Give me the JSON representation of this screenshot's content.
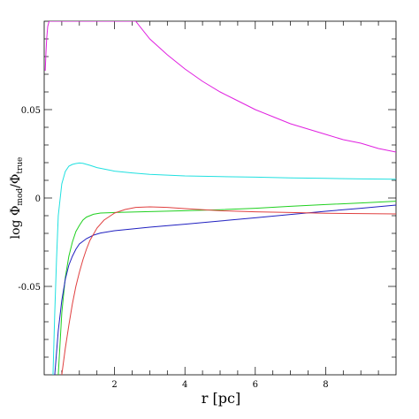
{
  "chart_data": {
    "type": "line",
    "xlabel": "r [pc]",
    "ylabel": {
      "prefix": "log Φ",
      "sub1": "mod",
      "slash": "/Φ",
      "sub2": "true"
    },
    "xlim": [
      0,
      10
    ],
    "ylim": [
      -0.1,
      0.1
    ],
    "xticks": [
      2,
      4,
      6,
      8
    ],
    "yticks": [
      0.05,
      0,
      -0.05
    ],
    "ytick_labels": [
      "0.05",
      "0",
      "-0.05"
    ],
    "xtick_labels": [
      "2",
      "4",
      "6",
      "8"
    ],
    "grid": false,
    "series": [
      {
        "color": "#e020e0",
        "x": [
          0.03,
          0.05,
          0.07,
          0.1,
          0.14,
          0.2,
          2.6,
          3.0,
          3.5,
          4.0,
          4.5,
          5.0,
          5.5,
          6.0,
          6.5,
          7.0,
          7.5,
          8.0,
          8.5,
          9.0,
          9.5,
          10.0
        ],
        "y": [
          0.072,
          0.082,
          0.09,
          0.097,
          0.1,
          0.1,
          0.1,
          0.09,
          0.081,
          0.073,
          0.066,
          0.06,
          0.055,
          0.05,
          0.046,
          0.042,
          0.039,
          0.036,
          0.033,
          0.031,
          0.028,
          0.026
        ]
      },
      {
        "color": "#20e0e0",
        "x": [
          0.25,
          0.3,
          0.35,
          0.4,
          0.5,
          0.6,
          0.7,
          0.8,
          0.9,
          1.0,
          1.1,
          1.3,
          1.5,
          1.8,
          2.0,
          2.5,
          3.0,
          4.0,
          5.0,
          6.0,
          7.0,
          8.0,
          9.0,
          10.0
        ],
        "y": [
          -0.1,
          -0.065,
          -0.035,
          -0.01,
          0.008,
          0.015,
          0.018,
          0.019,
          0.0195,
          0.0198,
          0.0196,
          0.0185,
          0.0172,
          0.016,
          0.0152,
          0.0142,
          0.0134,
          0.0125,
          0.0121,
          0.0118,
          0.0114,
          0.0111,
          0.0108,
          0.0106
        ]
      },
      {
        "color": "#20d020",
        "x": [
          0.4,
          0.5,
          0.6,
          0.7,
          0.8,
          0.9,
          1.0,
          1.1,
          1.2,
          1.4,
          1.6,
          2.0,
          3.0,
          4.0,
          5.0,
          6.0,
          7.0,
          8.0,
          9.0,
          10.0
        ],
        "y": [
          -0.1,
          -0.065,
          -0.045,
          -0.033,
          -0.025,
          -0.019,
          -0.0155,
          -0.0125,
          -0.0108,
          -0.0092,
          -0.0085,
          -0.0082,
          -0.0077,
          -0.0072,
          -0.0066,
          -0.0058,
          -0.0047,
          -0.0037,
          -0.0028,
          -0.0018
        ]
      },
      {
        "color": "#2020c0",
        "x": [
          0.3,
          0.4,
          0.5,
          0.6,
          0.7,
          0.8,
          0.9,
          1.0,
          1.2,
          1.4,
          1.6,
          2.0,
          3.0,
          4.0,
          5.0,
          6.0,
          7.0,
          8.0,
          9.0,
          10.0
        ],
        "y": [
          -0.1,
          -0.075,
          -0.058,
          -0.046,
          -0.038,
          -0.033,
          -0.029,
          -0.026,
          -0.023,
          -0.021,
          -0.0198,
          -0.0185,
          -0.0165,
          -0.0148,
          -0.013,
          -0.0112,
          -0.0093,
          -0.0075,
          -0.0058,
          -0.004
        ]
      },
      {
        "color": "#e04040",
        "x": [
          0.5,
          0.6,
          0.7,
          0.8,
          0.9,
          1.0,
          1.1,
          1.2,
          1.3,
          1.5,
          1.7,
          2.0,
          2.3,
          2.6,
          3.0,
          3.5,
          4.0,
          5.0,
          6.0,
          7.0,
          8.0,
          9.0,
          10.0
        ],
        "y": [
          -0.1,
          -0.085,
          -0.072,
          -0.06,
          -0.05,
          -0.042,
          -0.035,
          -0.029,
          -0.024,
          -0.017,
          -0.0125,
          -0.0085,
          -0.0065,
          -0.0053,
          -0.005,
          -0.0053,
          -0.006,
          -0.0072,
          -0.0078,
          -0.0082,
          -0.0086,
          -0.0088,
          -0.009
        ]
      }
    ]
  }
}
